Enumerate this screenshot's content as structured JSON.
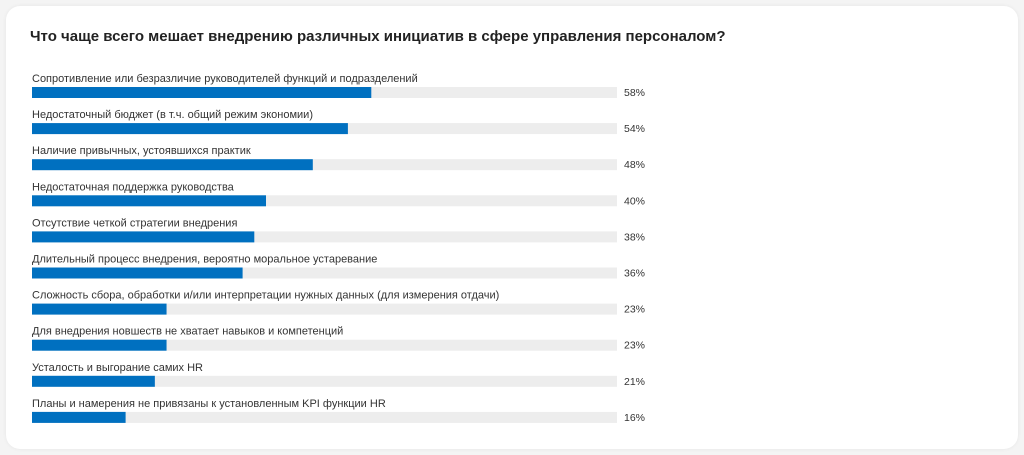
{
  "title": "Что чаще всего мешает внедрению различных инициатив в сфере управления персоналом?",
  "colors": {
    "bar": "#0070c0",
    "track": "#ededed",
    "label": "#333333",
    "value": "#333333"
  },
  "chart_data": {
    "type": "bar",
    "orientation": "horizontal",
    "title": "Что чаще всего мешает внедрению различных инициатив в сфере управления персоналом?",
    "unit": "%",
    "xlim": [
      0,
      100
    ],
    "categories": [
      "Сопротивление или безразличие руководителей функций и подразделений",
      "Недостаточный бюджет (в т.ч. общий режим экономии)",
      "Наличие привычных, устоявшихся практик",
      "Недостаточная поддержка руководства",
      "Отсутствие четкой стратегии внедрения",
      "Длительный процесс внедрения, вероятно моральное устаревание",
      "Сложность сбора, обработки и/или интерпретации нужных данных (для измерения отдачи)",
      "Для внедрения новшеств не хватает навыков и компетенций",
      "Усталость и выгорание самих HR",
      "Планы и намерения не привязаны к установленным KPI функции HR"
    ],
    "values": [
      58,
      54,
      48,
      40,
      38,
      36,
      23,
      23,
      21,
      16
    ],
    "value_labels": [
      "58%",
      "54%",
      "48%",
      "40%",
      "38%",
      "36%",
      "23%",
      "23%",
      "21%",
      "16%"
    ]
  }
}
